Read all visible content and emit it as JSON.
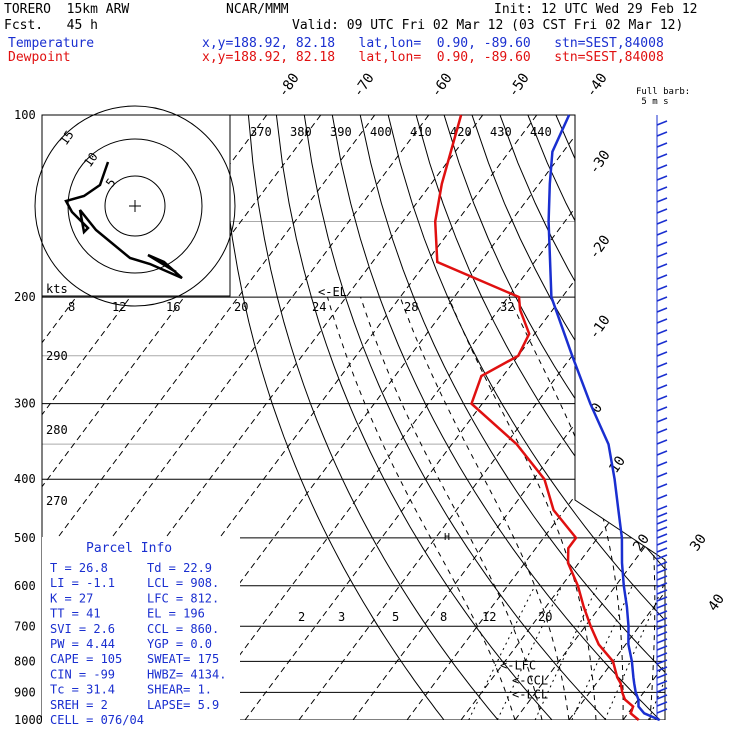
{
  "header": {
    "model": "TORERO  15km ARW",
    "source": "NCAR/MMM",
    "init": "Init: 12 UTC Wed 29 Feb 12",
    "fcst": "Fcst.   45 h",
    "valid": "Valid: 09 UTC Fri 02 Mar 12 (03 CST Fri 02 Mar 12)",
    "temp_label": "Temperature",
    "dew_label": "Dewpoint",
    "temp_loc": "x,y=188.92, 82.18   lat,lon=  0.90, -89.60   stn=SEST,84008",
    "dew_loc": "x,y=188.92, 82.18   lat,lon=  0.90, -89.60   stn=SEST,84008"
  },
  "colors": {
    "temperature": "#1a2fd0",
    "dewpoint": "#e01010"
  },
  "chart_data": {
    "type": "line",
    "pressure_ticks": [
      "100",
      "200",
      "300",
      "400",
      "500",
      "600",
      "700",
      "800",
      "900",
      "1000"
    ],
    "isotherm_labels": [
      "-80",
      "-70",
      "-60",
      "-50",
      "-40",
      "-30",
      "-20",
      "-10",
      "0",
      "10",
      "20",
      "30",
      "40"
    ],
    "theta_labels": [
      "370",
      "380",
      "390",
      "400",
      "410",
      "420",
      "430",
      "440"
    ],
    "theta_lower_labels": [
      "290",
      "280",
      "270"
    ],
    "mixing_labels": [
      "2",
      "3",
      "5",
      "8",
      "12",
      "20"
    ],
    "top_mixing_labels": [
      "8",
      "12",
      "16",
      "20",
      "24",
      "28",
      "32"
    ],
    "el_label": "<-EL",
    "lfc_label": "<-LFC",
    "ccl_label": "<-CCL",
    "lcl_label": "<-LCL",
    "kts_label": "kts",
    "hodo_rings": [
      "5",
      "10",
      "15"
    ],
    "barb_label": "Full barb:\n 5 m s",
    "series": [
      {
        "name": "Temperature",
        "color": "#1a2fd0",
        "p": [
          1000,
          975,
          950,
          925,
          900,
          870,
          850,
          800,
          750,
          700,
          650,
          600,
          550,
          500,
          450,
          400,
          350,
          300,
          250,
          200,
          150,
          130,
          115,
          100
        ],
        "t": [
          26.8,
          23,
          21,
          20,
          18.5,
          17,
          16,
          13.5,
          10.5,
          8,
          5,
          1.5,
          -2,
          -5.5,
          -10,
          -15,
          -21,
          -30,
          -40,
          -52,
          -63,
          -68,
          -72,
          -74
        ]
      },
      {
        "name": "Dewpoint",
        "color": "#e01010",
        "p": [
          1000,
          975,
          950,
          925,
          900,
          870,
          850,
          800,
          750,
          700,
          650,
          600,
          550,
          520,
          500,
          450,
          400,
          350,
          300,
          270,
          250,
          230,
          210,
          200,
          175,
          150,
          130,
          100
        ],
        "td": [
          22.9,
          20.5,
          20,
          17.5,
          16,
          14.5,
          13,
          10,
          5,
          1,
          -3,
          -7,
          -12,
          -14,
          -14,
          -22,
          -28,
          -38,
          -52,
          -54,
          -50,
          -51,
          -56,
          -58,
          -78,
          -84,
          -88,
          -94
        ]
      }
    ],
    "parcel_info": {
      "title": "Parcel Info",
      "rows": [
        [
          "T   =     26.8",
          "Td  =  22.9"
        ],
        [
          "LI  =     -1.1",
          "LCL =  908."
        ],
        [
          "K   =       27",
          "LFC =  812."
        ],
        [
          "TT  =       41",
          "EL  =   196"
        ],
        [
          "SVI =      2.6",
          "CCL =  860."
        ],
        [
          "PW  =     4.44",
          "YGP =   0.0"
        ],
        [
          "CAPE =     105",
          "SWEAT=  175"
        ],
        [
          "CIN  =     -99",
          "HWBZ= 4134."
        ],
        [
          "Tc  =     31.4",
          "SHEAR=   1."
        ],
        [
          "SREH =       2",
          "LAPSE=  5.9"
        ],
        [
          "CELL = 076/04",
          ""
        ]
      ]
    },
    "levels": {
      "el_p": 196,
      "lfc_p": 812,
      "ccl_p": 860,
      "lcl_p": 908
    }
  }
}
